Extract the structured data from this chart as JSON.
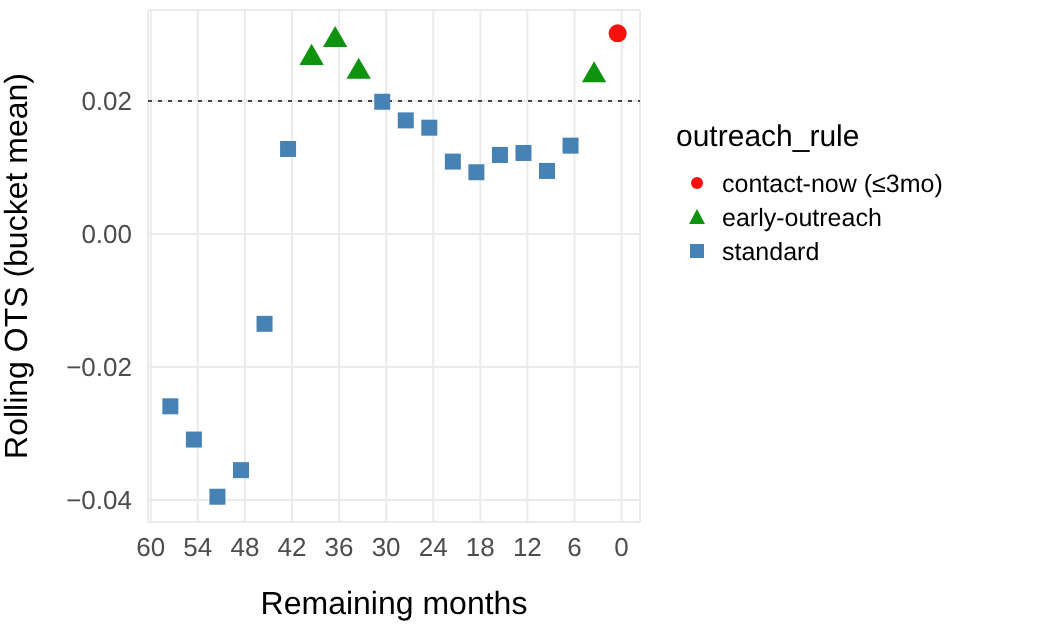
{
  "chart_data": {
    "type": "scatter",
    "xlabel": "Remaining months",
    "ylabel": "Rolling OTS (bucket mean)",
    "legend_title": "outreach_rule",
    "legend": "right",
    "grid": true,
    "xlim": [
      60.35,
      -2.35
    ],
    "xticks": [
      60,
      54,
      48,
      42,
      36,
      30,
      24,
      18,
      12,
      6,
      0
    ],
    "ylim": [
      -0.0433,
      0.0337
    ],
    "yticks": [
      {
        "value": -0.04,
        "label": "−0.04"
      },
      {
        "value": -0.02,
        "label": "−0.02"
      },
      {
        "value": 0,
        "label": "0.00"
      },
      {
        "value": 0.02,
        "label": "0.02"
      }
    ],
    "ref_lines": [
      {
        "axis": "y",
        "value": 0.02,
        "label": null,
        "color": "#444444",
        "line_style": "dotted"
      }
    ],
    "series": [
      {
        "name": "contact-now (≤3mo)",
        "color": "#f8100e",
        "marker": "circle",
        "x": [
          0.5
        ],
        "values": [
          0.0302
        ]
      },
      {
        "name": "early-outreach",
        "color": "#0f930f",
        "marker": "triangle",
        "x": [
          39.5,
          36.5,
          33.5,
          3.5
        ],
        "values": [
          0.0265,
          0.0292,
          0.0244,
          0.0239
        ]
      },
      {
        "name": "standard",
        "color": "#4682b4",
        "marker": "square",
        "x": [
          57.5,
          54.5,
          51.5,
          48.5,
          45.5,
          42.5,
          30.5,
          27.5,
          24.5,
          21.5,
          18.5,
          15.5,
          12.5,
          9.5,
          6.5
        ],
        "values": [
          -0.0259,
          -0.0309,
          -0.0395,
          -0.0355,
          -0.0135,
          0.0128,
          0.0199,
          0.0171,
          0.016,
          0.0109,
          0.0093,
          0.0119,
          0.0122,
          0.0095,
          0.0133
        ]
      }
    ]
  }
}
